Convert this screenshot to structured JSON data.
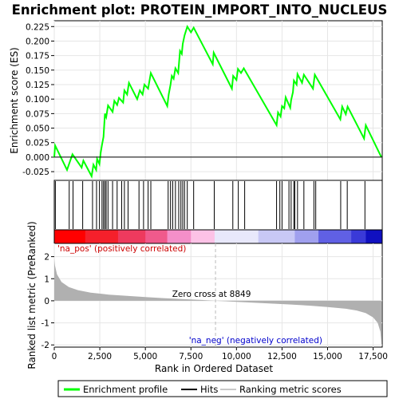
{
  "chart_data": {
    "type": "line",
    "title": "Enrichment plot: PROTEIN_IMPORT_INTO_NUCLEUS",
    "xlabel": "Rank in Ordered Dataset",
    "ylabel_top": "Enrichment score (ES)",
    "ylabel_bottom": "Ranked list metric (PreRanked)",
    "x_range": [
      0,
      18000
    ],
    "x_ticks": [
      0,
      2500,
      5000,
      7500,
      10000,
      12500,
      15000,
      17500
    ],
    "x_tick_labels": [
      "0",
      "2,500",
      "5,000",
      "7,500",
      "10,000",
      "12,500",
      "15,000",
      "17,500"
    ],
    "es_ylim": [
      -0.04,
      0.235
    ],
    "es_ticks": [
      -0.025,
      0.0,
      0.025,
      0.05,
      0.075,
      0.1,
      0.125,
      0.15,
      0.175,
      0.2,
      0.225
    ],
    "es_tick_labels": [
      "-0.025",
      "0.000",
      "0.025",
      "0.050",
      "0.075",
      "0.100",
      "0.125",
      "0.150",
      "0.175",
      "0.200",
      "0.225"
    ],
    "metric_ylim": [
      -2.1,
      2.6
    ],
    "metric_ticks": [
      -2,
      -1,
      0,
      1,
      2
    ],
    "metric_tick_labels": [
      "-2",
      "-1",
      "0",
      "1",
      "2"
    ],
    "enrichment_series": {
      "name": "Enrichment profile",
      "color": "#00ff00",
      "points": [
        [
          0,
          0.0
        ],
        [
          50,
          0.02
        ],
        [
          700,
          -0.022
        ],
        [
          1000,
          0.005
        ],
        [
          1500,
          -0.018
        ],
        [
          1600,
          -0.006
        ],
        [
          2050,
          -0.033
        ],
        [
          2150,
          -0.013
        ],
        [
          2300,
          -0.022
        ],
        [
          2350,
          -0.003
        ],
        [
          2480,
          -0.012
        ],
        [
          2550,
          0.008
        ],
        [
          2620,
          0.021
        ],
        [
          2700,
          0.035
        ],
        [
          2780,
          0.075
        ],
        [
          2850,
          0.069
        ],
        [
          2950,
          0.089
        ],
        [
          3200,
          0.078
        ],
        [
          3300,
          0.097
        ],
        [
          3450,
          0.09
        ],
        [
          3550,
          0.102
        ],
        [
          3780,
          0.094
        ],
        [
          3850,
          0.115
        ],
        [
          4000,
          0.108
        ],
        [
          4100,
          0.128
        ],
        [
          4550,
          0.1
        ],
        [
          4700,
          0.115
        ],
        [
          4850,
          0.108
        ],
        [
          4950,
          0.125
        ],
        [
          5150,
          0.118
        ],
        [
          5300,
          0.145
        ],
        [
          6200,
          0.088
        ],
        [
          6280,
          0.108
        ],
        [
          6380,
          0.125
        ],
        [
          6450,
          0.14
        ],
        [
          6550,
          0.135
        ],
        [
          6650,
          0.153
        ],
        [
          6800,
          0.145
        ],
        [
          6900,
          0.183
        ],
        [
          7000,
          0.178
        ],
        [
          7050,
          0.195
        ],
        [
          7150,
          0.21
        ],
        [
          7300,
          0.225
        ],
        [
          7500,
          0.215
        ],
        [
          7650,
          0.223
        ],
        [
          8700,
          0.16
        ],
        [
          8750,
          0.18
        ],
        [
          9750,
          0.118
        ],
        [
          9820,
          0.14
        ],
        [
          10000,
          0.133
        ],
        [
          10080,
          0.152
        ],
        [
          10250,
          0.145
        ],
        [
          10400,
          0.153
        ],
        [
          12200,
          0.055
        ],
        [
          12280,
          0.077
        ],
        [
          12420,
          0.07
        ],
        [
          12500,
          0.088
        ],
        [
          12620,
          0.084
        ],
        [
          12700,
          0.103
        ],
        [
          12950,
          0.085
        ],
        [
          13000,
          0.098
        ],
        [
          13100,
          0.112
        ],
        [
          13150,
          0.132
        ],
        [
          13300,
          0.125
        ],
        [
          13350,
          0.143
        ],
        [
          13600,
          0.128
        ],
        [
          13700,
          0.142
        ],
        [
          14200,
          0.118
        ],
        [
          14300,
          0.142
        ],
        [
          15700,
          0.065
        ],
        [
          15800,
          0.087
        ],
        [
          16000,
          0.074
        ],
        [
          16100,
          0.087
        ],
        [
          17000,
          0.032
        ],
        [
          17100,
          0.055
        ],
        [
          17950,
          0.0
        ]
      ]
    },
    "hits": [
      60,
      820,
      1030,
      1560,
      2100,
      2320,
      2480,
      2620,
      2700,
      2780,
      2850,
      2950,
      3200,
      3450,
      3700,
      3850,
      4050,
      4650,
      4900,
      5150,
      5300,
      6250,
      6380,
      6500,
      6650,
      6830,
      6950,
      7050,
      7150,
      7300,
      7650,
      8780,
      9800,
      10100,
      10450,
      12200,
      12380,
      12500,
      12880,
      13000,
      13150,
      13200,
      13350,
      13700,
      14250,
      14350,
      15720,
      16080,
      17050
    ],
    "metric_profile": [
      [
        0,
        1.9
      ],
      [
        40,
        1.6
      ],
      [
        150,
        1.2
      ],
      [
        400,
        0.85
      ],
      [
        800,
        0.62
      ],
      [
        1300,
        0.48
      ],
      [
        2000,
        0.37
      ],
      [
        3000,
        0.28
      ],
      [
        4000,
        0.22
      ],
      [
        5000,
        0.17
      ],
      [
        6000,
        0.12
      ],
      [
        7000,
        0.08
      ],
      [
        8000,
        0.04
      ],
      [
        8849,
        0.0
      ],
      [
        10000,
        -0.05
      ],
      [
        11000,
        -0.09
      ],
      [
        12000,
        -0.13
      ],
      [
        13000,
        -0.17
      ],
      [
        14000,
        -0.22
      ],
      [
        15000,
        -0.28
      ],
      [
        16000,
        -0.36
      ],
      [
        16600,
        -0.44
      ],
      [
        17100,
        -0.56
      ],
      [
        17500,
        -0.75
      ],
      [
        17750,
        -1.0
      ],
      [
        17900,
        -1.4
      ],
      [
        17950,
        -1.9
      ]
    ],
    "zero_cross_rank": 8849,
    "annotations": {
      "pos_label": "'na_pos' (positively correlated)",
      "neg_label": "'na_neg' (negatively correlated)",
      "zero_cross": "Zero cross at 8849"
    },
    "legend": {
      "placement": "bottom",
      "entries": [
        "Enrichment profile",
        "Hits",
        "Ranking metric scores"
      ]
    },
    "colors": {
      "profile": "#00ff00",
      "hits": "#000000",
      "metric_fill": "#b0b0b0",
      "pos_text": "#cc0000",
      "neg_text": "#0000cc",
      "zero_line": "#bbbbbb"
    },
    "heatbar_segments": [
      {
        "from": 0,
        "to": 1700,
        "color": "#ff0000"
      },
      {
        "from": 1700,
        "to": 3500,
        "color": "#f5202b"
      },
      {
        "from": 3500,
        "to": 5000,
        "color": "#ee3a5e"
      },
      {
        "from": 5000,
        "to": 6200,
        "color": "#f05a8c"
      },
      {
        "from": 6200,
        "to": 7500,
        "color": "#f48fc9"
      },
      {
        "from": 7500,
        "to": 8800,
        "color": "#fcc2e6"
      },
      {
        "from": 8800,
        "to": 11200,
        "color": "#e8e8fb"
      },
      {
        "from": 11200,
        "to": 13200,
        "color": "#c8c8f5"
      },
      {
        "from": 13200,
        "to": 14500,
        "color": "#a0a0ee"
      },
      {
        "from": 14500,
        "to": 16300,
        "color": "#6060e4"
      },
      {
        "from": 16300,
        "to": 17100,
        "color": "#3a3ad8"
      },
      {
        "from": 17100,
        "to": 18000,
        "color": "#1010c0"
      }
    ]
  }
}
